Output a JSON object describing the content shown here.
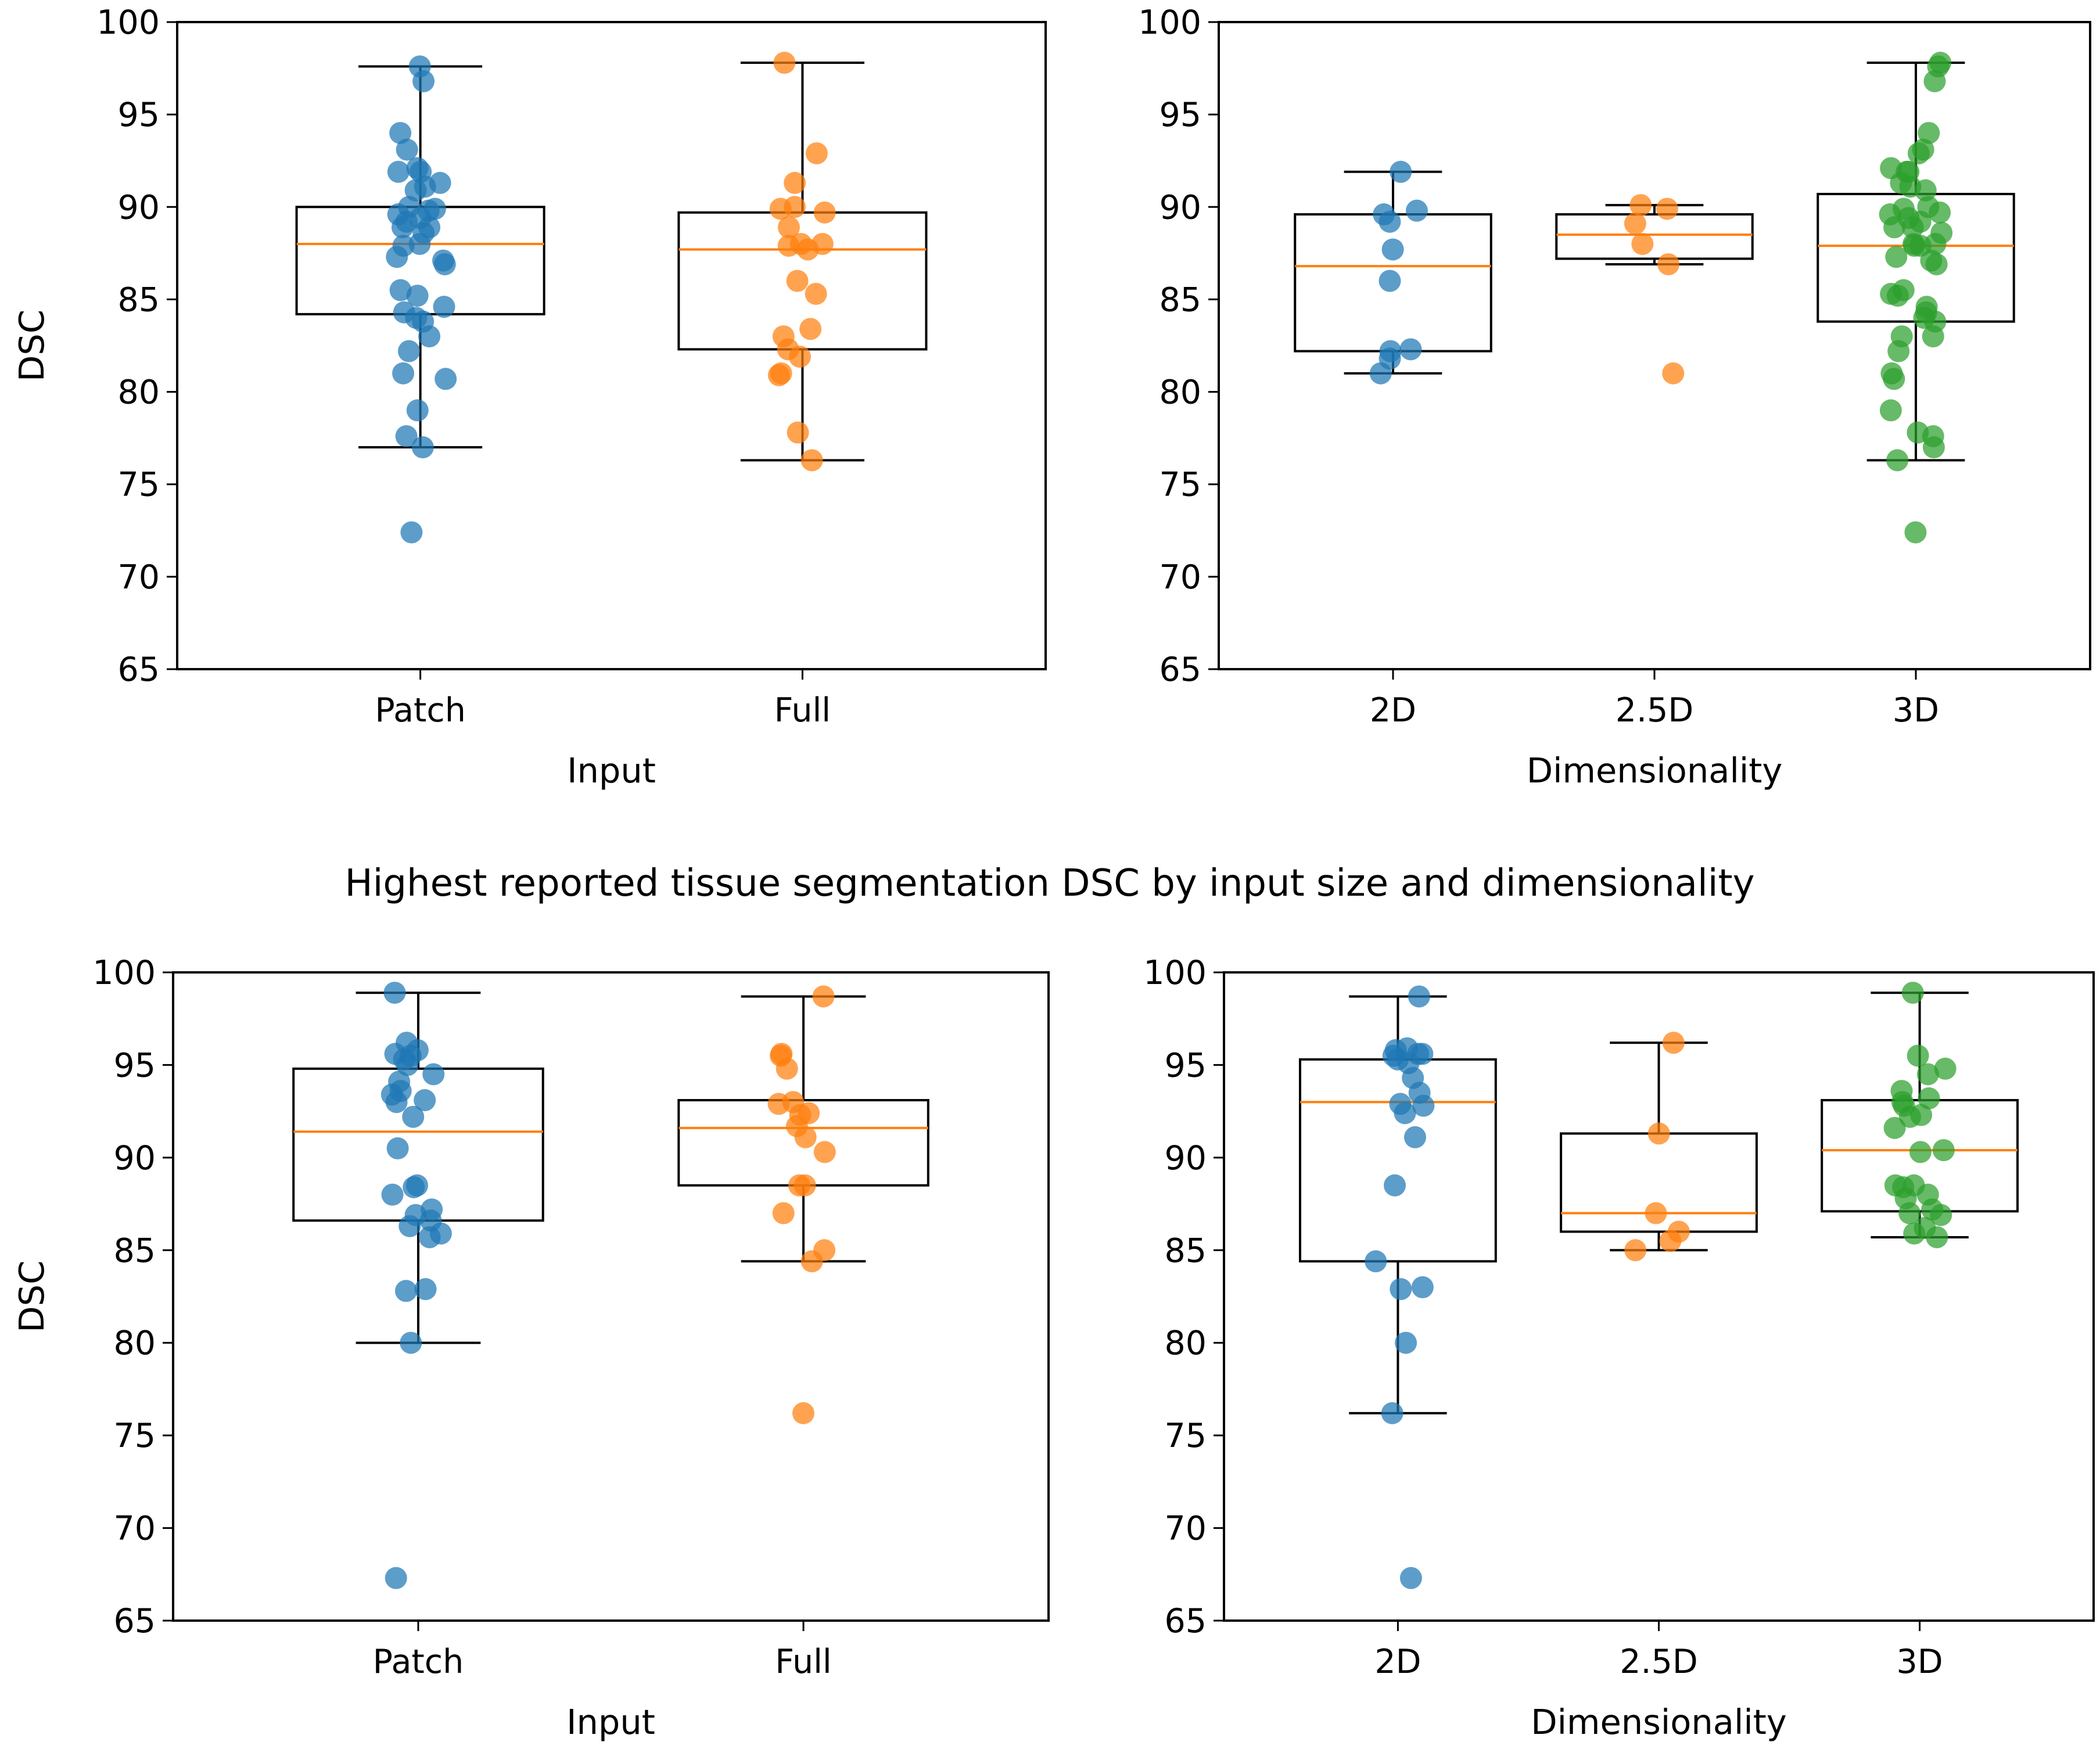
{
  "mid_title": "Highest reported tissue segmentation DSC by input size and dimensionality",
  "colors": {
    "blue": "#1f77b4",
    "orange": "#ff7f0e",
    "green": "#2ca02c",
    "median": "#ff7f0e",
    "box": "#000000"
  },
  "chart_data": [
    {
      "type": "box",
      "position": "top-left",
      "title": "",
      "xlabel": "Input",
      "ylabel": "DSC",
      "ylim": [
        65,
        100
      ],
      "yticks": [
        "65",
        "70",
        "75",
        "80",
        "85",
        "90",
        "95",
        "100"
      ],
      "categories": [
        "Patch",
        "Full"
      ],
      "series": [
        {
          "name": "Patch",
          "color": "blue",
          "box": {
            "q1": 84.2,
            "median": 88.0,
            "q3": 90.0,
            "whisker_low": 77.0,
            "whisker_high": 97.6
          },
          "points": [
            97.6,
            96.8,
            94.0,
            93.1,
            92.1,
            91.9,
            91.9,
            91.3,
            91.1,
            90.9,
            90.0,
            89.9,
            89.8,
            89.6,
            89.4,
            89.2,
            88.9,
            88.9,
            88.6,
            88.0,
            87.9,
            87.3,
            87.1,
            86.9,
            85.5,
            85.2,
            84.6,
            84.3,
            84.0,
            83.8,
            83.0,
            82.2,
            81.0,
            80.7,
            79.0,
            77.6,
            77.0,
            72.4
          ]
        },
        {
          "name": "Full",
          "color": "orange",
          "box": {
            "q1": 82.3,
            "median": 87.7,
            "q3": 89.7,
            "whisker_low": 76.3,
            "whisker_high": 97.8
          },
          "points": [
            97.8,
            92.9,
            91.3,
            90.0,
            89.9,
            89.7,
            88.9,
            88.0,
            88.0,
            87.9,
            87.7,
            86.0,
            85.3,
            83.4,
            83.0,
            82.3,
            81.9,
            81.0,
            80.9,
            77.8,
            76.3
          ]
        }
      ]
    },
    {
      "type": "box",
      "position": "top-right",
      "title": "",
      "xlabel": "Dimensionality",
      "ylabel": "",
      "ylim": [
        65,
        100
      ],
      "yticks": [
        "65",
        "70",
        "75",
        "80",
        "85",
        "90",
        "95",
        "100"
      ],
      "categories": [
        "2D",
        "2.5D",
        "3D"
      ],
      "series": [
        {
          "name": "2D",
          "color": "blue",
          "box": {
            "q1": 82.2,
            "median": 86.8,
            "q3": 89.6,
            "whisker_low": 81.0,
            "whisker_high": 91.9
          },
          "points": [
            91.9,
            89.8,
            89.6,
            89.2,
            87.7,
            86.0,
            82.3,
            82.2,
            81.8,
            81.0
          ]
        },
        {
          "name": "2.5D",
          "color": "orange",
          "box": {
            "q1": 87.2,
            "median": 88.5,
            "q3": 89.6,
            "whisker_low": 86.9,
            "whisker_high": 90.1
          },
          "points": [
            90.1,
            89.9,
            89.1,
            88.0,
            86.9,
            81.0
          ]
        },
        {
          "name": "3D",
          "color": "green",
          "box": {
            "q1": 83.8,
            "median": 87.9,
            "q3": 90.7,
            "whisker_low": 76.3,
            "whisker_high": 97.8
          },
          "points": [
            97.8,
            97.6,
            96.8,
            94.0,
            93.1,
            92.9,
            92.1,
            91.9,
            91.9,
            91.3,
            91.1,
            90.9,
            90.0,
            89.9,
            89.7,
            89.6,
            89.4,
            89.2,
            88.9,
            88.9,
            88.6,
            88.0,
            88.0,
            87.9,
            87.9,
            87.3,
            87.1,
            86.9,
            85.5,
            85.3,
            85.2,
            84.6,
            84.3,
            84.0,
            83.8,
            83.0,
            83.0,
            82.2,
            81.0,
            80.7,
            79.0,
            77.8,
            77.6,
            77.0,
            76.3,
            72.4
          ]
        }
      ]
    },
    {
      "type": "box",
      "position": "bottom-left",
      "title": "",
      "xlabel": "Input",
      "ylabel": "DSC",
      "ylim": [
        65,
        100
      ],
      "yticks": [
        "65",
        "70",
        "75",
        "80",
        "85",
        "90",
        "95",
        "100"
      ],
      "categories": [
        "Patch",
        "Full"
      ],
      "series": [
        {
          "name": "Patch",
          "color": "blue",
          "box": {
            "q1": 86.6,
            "median": 91.4,
            "q3": 94.8,
            "whisker_low": 80.0,
            "whisker_high": 98.9
          },
          "points": [
            98.9,
            96.2,
            95.8,
            95.6,
            95.5,
            95.3,
            95.0,
            94.5,
            94.1,
            93.6,
            93.4,
            93.1,
            93.0,
            92.2,
            90.5,
            88.5,
            88.4,
            88.0,
            87.2,
            86.9,
            86.6,
            86.3,
            85.9,
            85.7,
            82.9,
            82.8,
            80.0,
            67.3
          ]
        },
        {
          "name": "Full",
          "color": "orange",
          "box": {
            "q1": 88.5,
            "median": 91.6,
            "q3": 93.1,
            "whisker_low": 84.4,
            "whisker_high": 98.7
          },
          "points": [
            98.7,
            95.6,
            95.5,
            94.8,
            93.0,
            92.9,
            92.4,
            92.3,
            91.7,
            91.1,
            90.3,
            88.5,
            88.5,
            87.0,
            85.0,
            84.4,
            76.2
          ]
        }
      ]
    },
    {
      "type": "box",
      "position": "bottom-right",
      "title": "",
      "xlabel": "Dimensionality",
      "ylabel": "",
      "ylim": [
        65,
        100
      ],
      "yticks": [
        "65",
        "70",
        "75",
        "80",
        "85",
        "90",
        "95",
        "100"
      ],
      "categories": [
        "2D",
        "2.5D",
        "3D"
      ],
      "series": [
        {
          "name": "2D",
          "color": "blue",
          "box": {
            "q1": 84.4,
            "median": 93.0,
            "q3": 95.3,
            "whisker_low": 76.2,
            "whisker_high": 98.7
          },
          "points": [
            98.7,
            95.9,
            95.8,
            95.6,
            95.6,
            95.5,
            95.3,
            95.1,
            94.3,
            93.5,
            92.9,
            92.8,
            92.4,
            91.1,
            88.5,
            84.4,
            83.0,
            82.9,
            80.0,
            76.2,
            67.3
          ]
        },
        {
          "name": "2.5D",
          "color": "orange",
          "box": {
            "q1": 86.0,
            "median": 87.0,
            "q3": 91.3,
            "whisker_low": 85.0,
            "whisker_high": 96.2
          },
          "points": [
            96.2,
            91.3,
            87.0,
            86.0,
            85.5,
            85.0
          ]
        },
        {
          "name": "3D",
          "color": "green",
          "box": {
            "q1": 87.1,
            "median": 90.4,
            "q3": 93.1,
            "whisker_low": 85.7,
            "whisker_high": 98.9
          },
          "points": [
            98.9,
            95.5,
            94.8,
            94.5,
            93.6,
            93.2,
            93.0,
            92.8,
            92.3,
            92.2,
            91.6,
            90.4,
            90.3,
            88.5,
            88.5,
            88.4,
            88.0,
            87.8,
            87.2,
            87.0,
            86.9,
            86.2,
            85.9,
            85.7
          ]
        }
      ]
    }
  ]
}
